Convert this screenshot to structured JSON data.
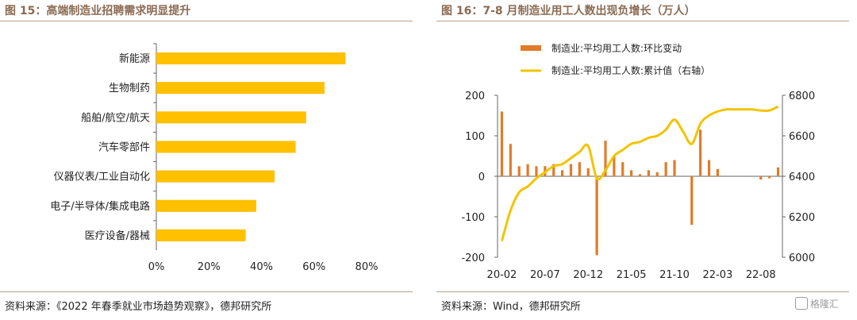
{
  "left": {
    "title": "图 15：高端制造业招聘需求明显提升",
    "source": "资料来源：《2022 年春季就业市场趋势观察》，德邦研究所"
  },
  "right": {
    "title": "图 16：7-8 月制造业用工人数出现负增长（万人）",
    "source": "资料来源：Wind，德邦研究所"
  },
  "watermark": "格隆汇",
  "chart_data": [
    {
      "type": "bar",
      "orientation": "horizontal",
      "categories": [
        "新能源",
        "生物制药",
        "船舶/航空/航天",
        "汽车零部件",
        "仪器仪表/工业自动化",
        "电子/半导体/集成电路",
        "医疗设备/器械"
      ],
      "values": [
        72,
        64,
        57,
        53,
        45,
        38,
        34
      ],
      "xlim": [
        0,
        80
      ],
      "xticks": [
        "0%",
        "20%",
        "40%",
        "60%",
        "80%"
      ],
      "colors": {
        "bar": "#FFC000"
      }
    },
    {
      "type": "bar+line",
      "series": [
        {
          "name": "制造业:平均用工人数:环比变动",
          "type": "bar",
          "axis": "left",
          "color": "#E07B29",
          "values": [
            160,
            80,
            25,
            30,
            25,
            25,
            30,
            15,
            30,
            35,
            20,
            -195,
            88,
            50,
            35,
            15,
            5,
            15,
            10,
            35,
            40,
            0,
            -120,
            115,
            40,
            18,
            0,
            0,
            0,
            0,
            -8,
            -5,
            22
          ]
        },
        {
          "name": "制造业:平均用工人数:累计值（右轴）",
          "type": "line",
          "axis": "right",
          "color": "#F2C400",
          "values": [
            6080,
            6230,
            6320,
            6350,
            6390,
            6420,
            6450,
            6460,
            6490,
            6520,
            6550,
            6390,
            6430,
            6500,
            6530,
            6560,
            6570,
            6590,
            6600,
            6630,
            6680,
            6620,
            6560,
            6660,
            6700,
            6720,
            6730,
            6730,
            6730,
            6730,
            6725,
            6725,
            6745
          ]
        }
      ],
      "x_tick_labels": [
        "20-02",
        "20-07",
        "20-12",
        "21-05",
        "21-10",
        "22-03",
        "22-08"
      ],
      "x_tick_index": [
        0,
        5,
        10,
        15,
        20,
        25,
        30
      ],
      "ylim_left": [
        -200,
        200
      ],
      "yticks_left": [
        "200",
        "100",
        "0",
        "-100",
        "-200"
      ],
      "ylim_right": [
        6000,
        6800
      ],
      "yticks_right": [
        "6800",
        "6600",
        "6400",
        "6200",
        "6000"
      ],
      "legend_position": "top"
    }
  ]
}
